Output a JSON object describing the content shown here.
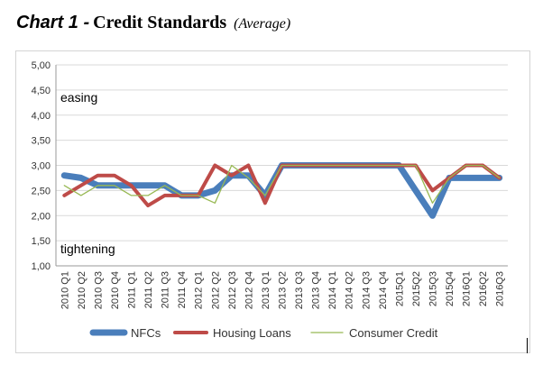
{
  "heading": {
    "chart_label": "Chart 1 -",
    "title": "Credit Standards",
    "subtitle": "(Average)"
  },
  "chart_data": {
    "type": "line",
    "title": "Credit Standards",
    "subtitle": "(Average)",
    "xlabel": "",
    "ylabel": "",
    "ylim": [
      1,
      5
    ],
    "yticks": [
      "1,00",
      "1,50",
      "2,00",
      "2,50",
      "3,00",
      "3,50",
      "4,00",
      "4,50",
      "5,00"
    ],
    "grid": true,
    "legend_position": "bottom",
    "annotations": [
      "easing",
      "tightening"
    ],
    "categories": [
      "2010 Q1",
      "2010 Q2",
      "2010 Q3",
      "2010 Q4",
      "2011 Q1",
      "2011 Q2",
      "2011 Q3",
      "2011 Q4",
      "2012 Q1",
      "2012 Q2",
      "2012 Q3",
      "2012 Q4",
      "2013 Q1",
      "2013 Q2",
      "2013 Q3",
      "2013 Q4",
      "2014 Q1",
      "2014 Q2",
      "2014 Q3",
      "2014 Q4",
      "2015Q1",
      "2015Q2",
      "2015Q3",
      "2015Q4",
      "2016Q1",
      "2016Q2",
      "2016Q3"
    ],
    "series": [
      {
        "name": "NFCs",
        "color": "#4a7ebb",
        "values": [
          2.8,
          2.75,
          2.6,
          2.6,
          2.6,
          2.6,
          2.6,
          2.4,
          2.4,
          2.5,
          2.8,
          2.8,
          2.4,
          3.0,
          3.0,
          3.0,
          3.0,
          3.0,
          3.0,
          3.0,
          3.0,
          2.5,
          2.0,
          2.75,
          2.75,
          2.75,
          2.75
        ]
      },
      {
        "name": "Housing Loans",
        "color": "#be4b48",
        "values": [
          2.4,
          2.6,
          2.8,
          2.8,
          2.6,
          2.2,
          2.4,
          2.4,
          2.4,
          3.0,
          2.8,
          3.0,
          2.25,
          3.0,
          3.0,
          3.0,
          3.0,
          3.0,
          3.0,
          3.0,
          3.0,
          3.0,
          2.5,
          2.75,
          3.0,
          3.0,
          2.75
        ]
      },
      {
        "name": "Consumer Credit",
        "color": "#98b954",
        "values": [
          2.6,
          2.4,
          2.6,
          2.6,
          2.4,
          2.4,
          2.6,
          2.4,
          2.4,
          2.25,
          3.0,
          2.75,
          2.4,
          3.0,
          3.0,
          3.0,
          3.0,
          3.0,
          3.0,
          3.0,
          3.0,
          3.0,
          2.25,
          2.75,
          3.0,
          3.0,
          2.75
        ]
      }
    ]
  }
}
